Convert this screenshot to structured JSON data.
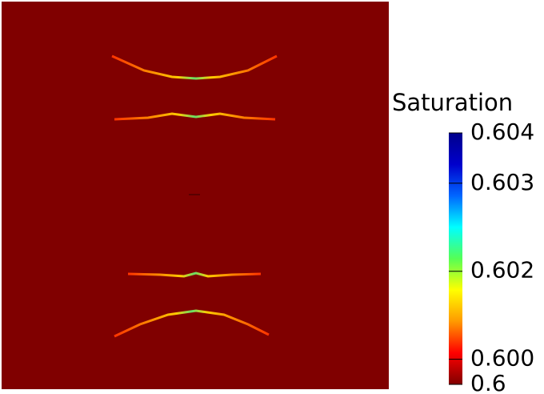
{
  "chart_data": {
    "type": "colorfield",
    "colorbar_title": "Saturation",
    "colormap": [
      "#800000",
      "#ff0000",
      "#ff9900",
      "#ffff00",
      "#55ff55",
      "#00ffff",
      "#0066ff",
      "#0000cc",
      "#00008b"
    ],
    "ylim": [
      0.6,
      0.604
    ],
    "yticks": [
      0.6,
      {
        "value": 0.6004,
        "label": "0.600"
      },
      {
        "value": 0.6018,
        "label": "0.602"
      },
      {
        "value": 0.6032,
        "label": "0.603"
      },
      0.604
    ]
  }
}
